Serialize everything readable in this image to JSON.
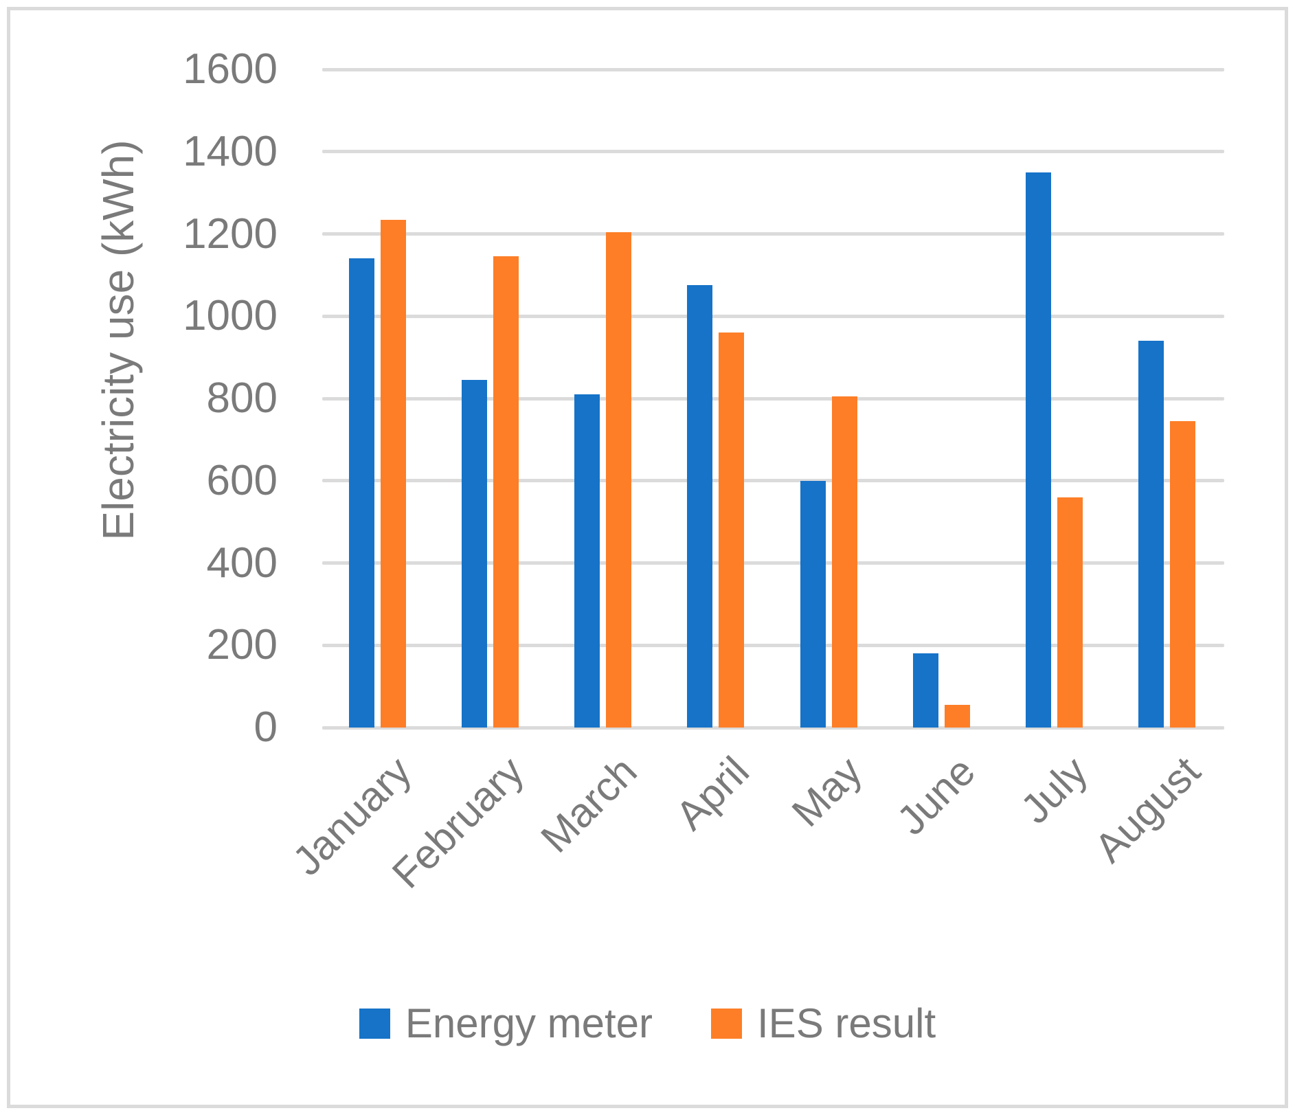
{
  "chart_data": {
    "type": "bar",
    "title": "",
    "xlabel": "",
    "ylabel": "Electricity use (kWh)",
    "ylim": [
      0,
      1600
    ],
    "ytick_step": 200,
    "ytick_labels": [
      "0",
      "200",
      "400",
      "600",
      "800",
      "1000",
      "1200",
      "1400",
      "1600"
    ],
    "grid": true,
    "legend_position": "bottom",
    "categories": [
      "January",
      "February",
      "March",
      "April",
      "May",
      "June",
      "July",
      "August"
    ],
    "series": [
      {
        "name": "Energy meter",
        "color": "#1673C8",
        "values": [
          1140,
          845,
          810,
          1075,
          600,
          180,
          1350,
          940
        ]
      },
      {
        "name": "IES result",
        "color": "#FD7E27",
        "values": [
          1235,
          1145,
          1205,
          960,
          805,
          55,
          560,
          745
        ]
      }
    ]
  },
  "colors": {
    "background": "#FFFFFF",
    "gridline": "#DBDBDB",
    "frame_border": "#DBDBDB",
    "text": "#7A7A7A"
  }
}
